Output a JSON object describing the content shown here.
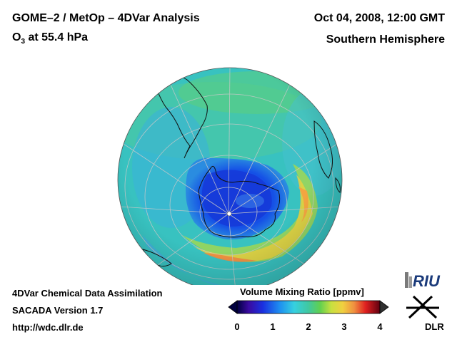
{
  "header": {
    "title_line1": "GOME–2 / MetOp – 4DVar Analysis",
    "title_prefix": "O",
    "title_sub": "3",
    "title_suffix": " at 55.4 hPa",
    "date": "Oct 04, 2008, 12:00 GMT",
    "region": "Southern Hemisphere"
  },
  "footer": {
    "line1": "4DVar Chemical Data Assimilation",
    "line2": "SACADA Version 1.7",
    "line3": "http://wdc.dlr.de"
  },
  "colorbar": {
    "title": "Volume Mixing Ratio [ppmv]",
    "ticks": [
      "0",
      "1",
      "2",
      "3",
      "4"
    ],
    "range": [
      0,
      4
    ]
  },
  "logos": {
    "riu": "RIU",
    "dlr": "DLR"
  },
  "colors": {
    "ozone_hole": "#1a3ccc",
    "background_field": "#3ec4c4",
    "high_ring": "#f2c030"
  }
}
